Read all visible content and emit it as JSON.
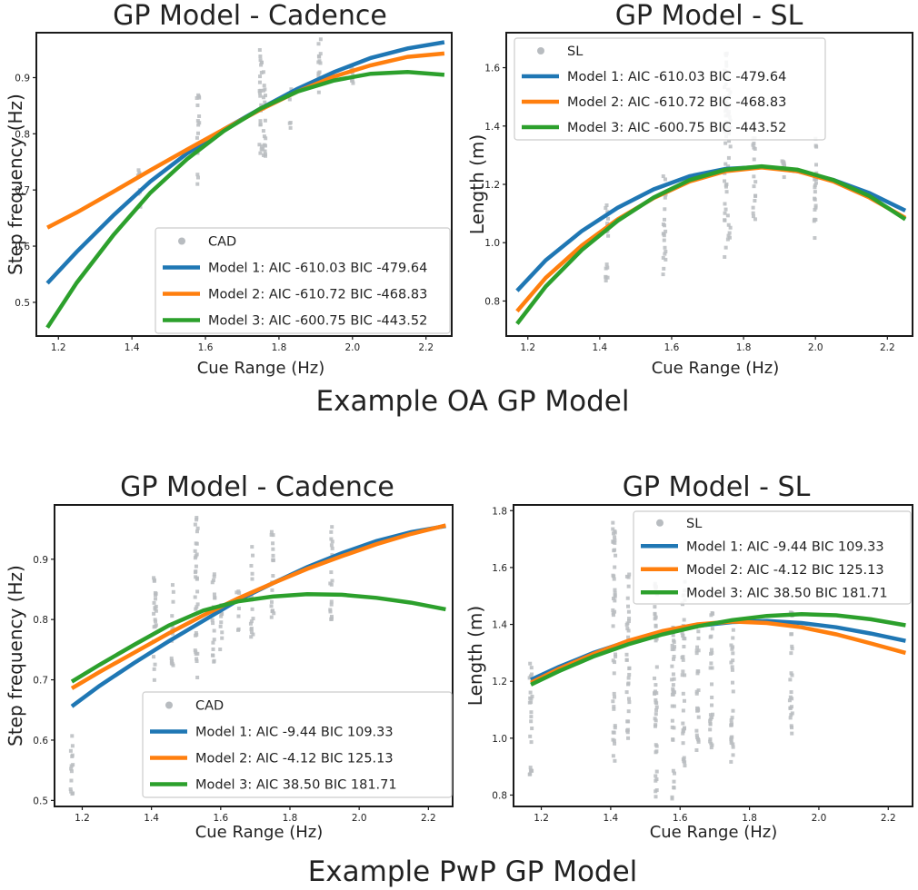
{
  "sections": [
    {
      "title": "Example OA GP Model"
    },
    {
      "title": "Example PwP GP Model"
    }
  ],
  "colors": {
    "model1": "#1f77b4",
    "model2": "#ff7f0e",
    "model3": "#2ca02c",
    "scatter": "#b8bcc0"
  },
  "chart_data": [
    {
      "type": "line",
      "title": "GP Model - Cadence",
      "xlabel": "Cue Range (Hz)",
      "ylabel": "Step frequency (Hz)",
      "xlim": [
        1.14,
        2.27
      ],
      "ylim": [
        0.44,
        0.98
      ],
      "xticks": [
        "1.2",
        "1.4",
        "1.6",
        "1.8",
        "2.0",
        "2.2"
      ],
      "yticks": [
        "0.5",
        "0.6",
        "0.7",
        "0.8",
        "0.9"
      ],
      "legend_position": "lower-right",
      "scatter_label": "CAD",
      "scatter_columns": [
        {
          "x": 1.42,
          "ymin": 0.67,
          "ymax": 0.75
        },
        {
          "x": 1.58,
          "ymin": 0.7,
          "ymax": 0.88
        },
        {
          "x": 1.75,
          "ymin": 0.75,
          "ymax": 0.95
        },
        {
          "x": 1.76,
          "ymin": 0.76,
          "ymax": 0.93
        },
        {
          "x": 1.83,
          "ymin": 0.8,
          "ymax": 0.88
        },
        {
          "x": 1.91,
          "ymin": 0.85,
          "ymax": 0.97
        },
        {
          "x": 2.0,
          "ymin": 0.88,
          "ymax": 0.93
        }
      ],
      "x": [
        1.17,
        1.25,
        1.35,
        1.45,
        1.55,
        1.65,
        1.75,
        1.85,
        1.95,
        2.05,
        2.15,
        2.25
      ],
      "series": [
        {
          "name": "Model 1: AIC -610.03 BIC -479.64",
          "values": [
            0.534,
            0.59,
            0.655,
            0.715,
            0.765,
            0.808,
            0.845,
            0.88,
            0.91,
            0.935,
            0.952,
            0.963
          ]
        },
        {
          "name": "Model 2: AIC -610.72 BIC -468.83",
          "values": [
            0.633,
            0.66,
            0.697,
            0.735,
            0.772,
            0.808,
            0.843,
            0.875,
            0.902,
            0.922,
            0.937,
            0.943
          ]
        },
        {
          "name": "Model 3: AIC -600.75 BIC -443.52",
          "values": [
            0.455,
            0.535,
            0.62,
            0.695,
            0.755,
            0.805,
            0.845,
            0.875,
            0.895,
            0.907,
            0.91,
            0.905
          ]
        }
      ]
    },
    {
      "type": "line",
      "title": "GP Model - SL",
      "xlabel": "Cue Range (Hz)",
      "ylabel": "Length (m)",
      "xlim": [
        1.14,
        2.27
      ],
      "ylim": [
        0.68,
        1.72
      ],
      "xticks": [
        "1.2",
        "1.4",
        "1.6",
        "1.8",
        "2.0",
        "2.2"
      ],
      "yticks": [
        "0.8",
        "1.0",
        "1.2",
        "1.4",
        "1.6"
      ],
      "legend_position": "upper-left",
      "scatter_label": "SL",
      "scatter_columns": [
        {
          "x": 1.42,
          "ymin": 0.86,
          "ymax": 1.13
        },
        {
          "x": 1.58,
          "ymin": 0.89,
          "ymax": 1.23
        },
        {
          "x": 1.75,
          "ymin": 0.95,
          "ymax": 1.68
        },
        {
          "x": 1.76,
          "ymin": 0.98,
          "ymax": 1.55
        },
        {
          "x": 1.83,
          "ymin": 1.08,
          "ymax": 1.4
        },
        {
          "x": 1.91,
          "ymin": 1.15,
          "ymax": 1.3
        },
        {
          "x": 2.0,
          "ymin": 1.0,
          "ymax": 1.38
        }
      ],
      "x": [
        1.17,
        1.25,
        1.35,
        1.45,
        1.55,
        1.65,
        1.75,
        1.85,
        1.95,
        2.05,
        2.15,
        2.25
      ],
      "series": [
        {
          "name": "Model 1: AIC -610.03 BIC -479.64",
          "values": [
            0.835,
            0.94,
            1.04,
            1.12,
            1.183,
            1.228,
            1.253,
            1.26,
            1.245,
            1.215,
            1.17,
            1.11
          ]
        },
        {
          "name": "Model 2: AIC -610.72 BIC -468.83",
          "values": [
            0.765,
            0.88,
            0.99,
            1.08,
            1.153,
            1.21,
            1.245,
            1.258,
            1.245,
            1.21,
            1.155,
            1.085
          ]
        },
        {
          "name": "Model 3: AIC -600.75 BIC -443.52",
          "values": [
            0.722,
            0.85,
            0.975,
            1.075,
            1.155,
            1.215,
            1.25,
            1.262,
            1.25,
            1.215,
            1.16,
            1.08
          ]
        }
      ]
    },
    {
      "type": "line",
      "title": "GP Model - Cadence",
      "xlabel": "Cue Range (Hz)",
      "ylabel": "Step frequency (Hz)",
      "xlim": [
        1.12,
        2.27
      ],
      "ylim": [
        0.49,
        0.99
      ],
      "xticks": [
        "1.2",
        "1.4",
        "1.6",
        "1.8",
        "2.0",
        "2.2"
      ],
      "yticks": [
        "0.5",
        "0.6",
        "0.7",
        "0.8",
        "0.9"
      ],
      "legend_position": "lower-right",
      "scatter_label": "CAD",
      "scatter_columns": [
        {
          "x": 1.17,
          "ymin": 0.5,
          "ymax": 0.62
        },
        {
          "x": 1.41,
          "ymin": 0.68,
          "ymax": 0.87
        },
        {
          "x": 1.46,
          "ymin": 0.72,
          "ymax": 0.86
        },
        {
          "x": 1.53,
          "ymin": 0.7,
          "ymax": 0.97
        },
        {
          "x": 1.58,
          "ymin": 0.72,
          "ymax": 0.89
        },
        {
          "x": 1.6,
          "ymin": 0.75,
          "ymax": 0.83
        },
        {
          "x": 1.65,
          "ymin": 0.78,
          "ymax": 0.85
        },
        {
          "x": 1.69,
          "ymin": 0.77,
          "ymax": 0.94
        },
        {
          "x": 1.75,
          "ymin": 0.79,
          "ymax": 0.95
        },
        {
          "x": 1.92,
          "ymin": 0.8,
          "ymax": 0.96
        }
      ],
      "x": [
        1.17,
        1.25,
        1.35,
        1.45,
        1.55,
        1.65,
        1.75,
        1.85,
        1.95,
        2.05,
        2.15,
        2.25
      ],
      "series": [
        {
          "name": "Model 1: AIC -9.44 BIC 109.33",
          "values": [
            0.656,
            0.69,
            0.728,
            0.764,
            0.798,
            0.832,
            0.86,
            0.887,
            0.91,
            0.93,
            0.945,
            0.955
          ]
        },
        {
          "name": "Model 2: AIC -4.12 BIC 125.13",
          "values": [
            0.686,
            0.713,
            0.745,
            0.777,
            0.807,
            0.835,
            0.86,
            0.884,
            0.905,
            0.925,
            0.942,
            0.956
          ]
        },
        {
          "name": "Model 3: AIC 38.50 BIC 181.71",
          "values": [
            0.697,
            0.725,
            0.758,
            0.79,
            0.815,
            0.83,
            0.838,
            0.842,
            0.841,
            0.836,
            0.828,
            0.817
          ]
        }
      ]
    },
    {
      "type": "line",
      "title": "GP Model - SL",
      "xlabel": "Cue Range (Hz)",
      "ylabel": "Length (m)",
      "xlim": [
        1.12,
        2.27
      ],
      "ylim": [
        0.76,
        1.82
      ],
      "xticks": [
        "1.2",
        "1.4",
        "1.6",
        "1.8",
        "2.0",
        "2.2"
      ],
      "yticks": [
        "0.8",
        "1.0",
        "1.2",
        "1.4",
        "1.6",
        "1.8"
      ],
      "legend_position": "upper-right",
      "scatter_label": "SL",
      "scatter_columns": [
        {
          "x": 1.17,
          "ymin": 0.87,
          "ymax": 1.27
        },
        {
          "x": 1.41,
          "ymin": 0.92,
          "ymax": 1.8
        },
        {
          "x": 1.45,
          "ymin": 1.0,
          "ymax": 1.6
        },
        {
          "x": 1.53,
          "ymin": 0.77,
          "ymax": 1.55
        },
        {
          "x": 1.58,
          "ymin": 0.78,
          "ymax": 1.45
        },
        {
          "x": 1.61,
          "ymin": 0.9,
          "ymax": 1.55
        },
        {
          "x": 1.65,
          "ymin": 0.95,
          "ymax": 1.4
        },
        {
          "x": 1.69,
          "ymin": 0.95,
          "ymax": 1.45
        },
        {
          "x": 1.75,
          "ymin": 0.9,
          "ymax": 1.4
        },
        {
          "x": 1.92,
          "ymin": 1.01,
          "ymax": 1.45
        }
      ],
      "x": [
        1.17,
        1.25,
        1.35,
        1.45,
        1.55,
        1.65,
        1.75,
        1.85,
        1.95,
        2.05,
        2.15,
        2.25
      ],
      "series": [
        {
          "name": "Model 1: AIC -9.44 BIC 109.33",
          "values": [
            1.205,
            1.25,
            1.3,
            1.34,
            1.372,
            1.395,
            1.408,
            1.412,
            1.405,
            1.39,
            1.368,
            1.342
          ]
        },
        {
          "name": "Model 2: AIC -4.12 BIC 125.13",
          "values": [
            1.195,
            1.243,
            1.296,
            1.342,
            1.377,
            1.4,
            1.41,
            1.405,
            1.39,
            1.365,
            1.333,
            1.3
          ]
        },
        {
          "name": "Model 3: AIC 38.50 BIC 181.71",
          "values": [
            1.188,
            1.235,
            1.287,
            1.33,
            1.365,
            1.393,
            1.415,
            1.43,
            1.436,
            1.432,
            1.418,
            1.397
          ]
        }
      ]
    }
  ]
}
